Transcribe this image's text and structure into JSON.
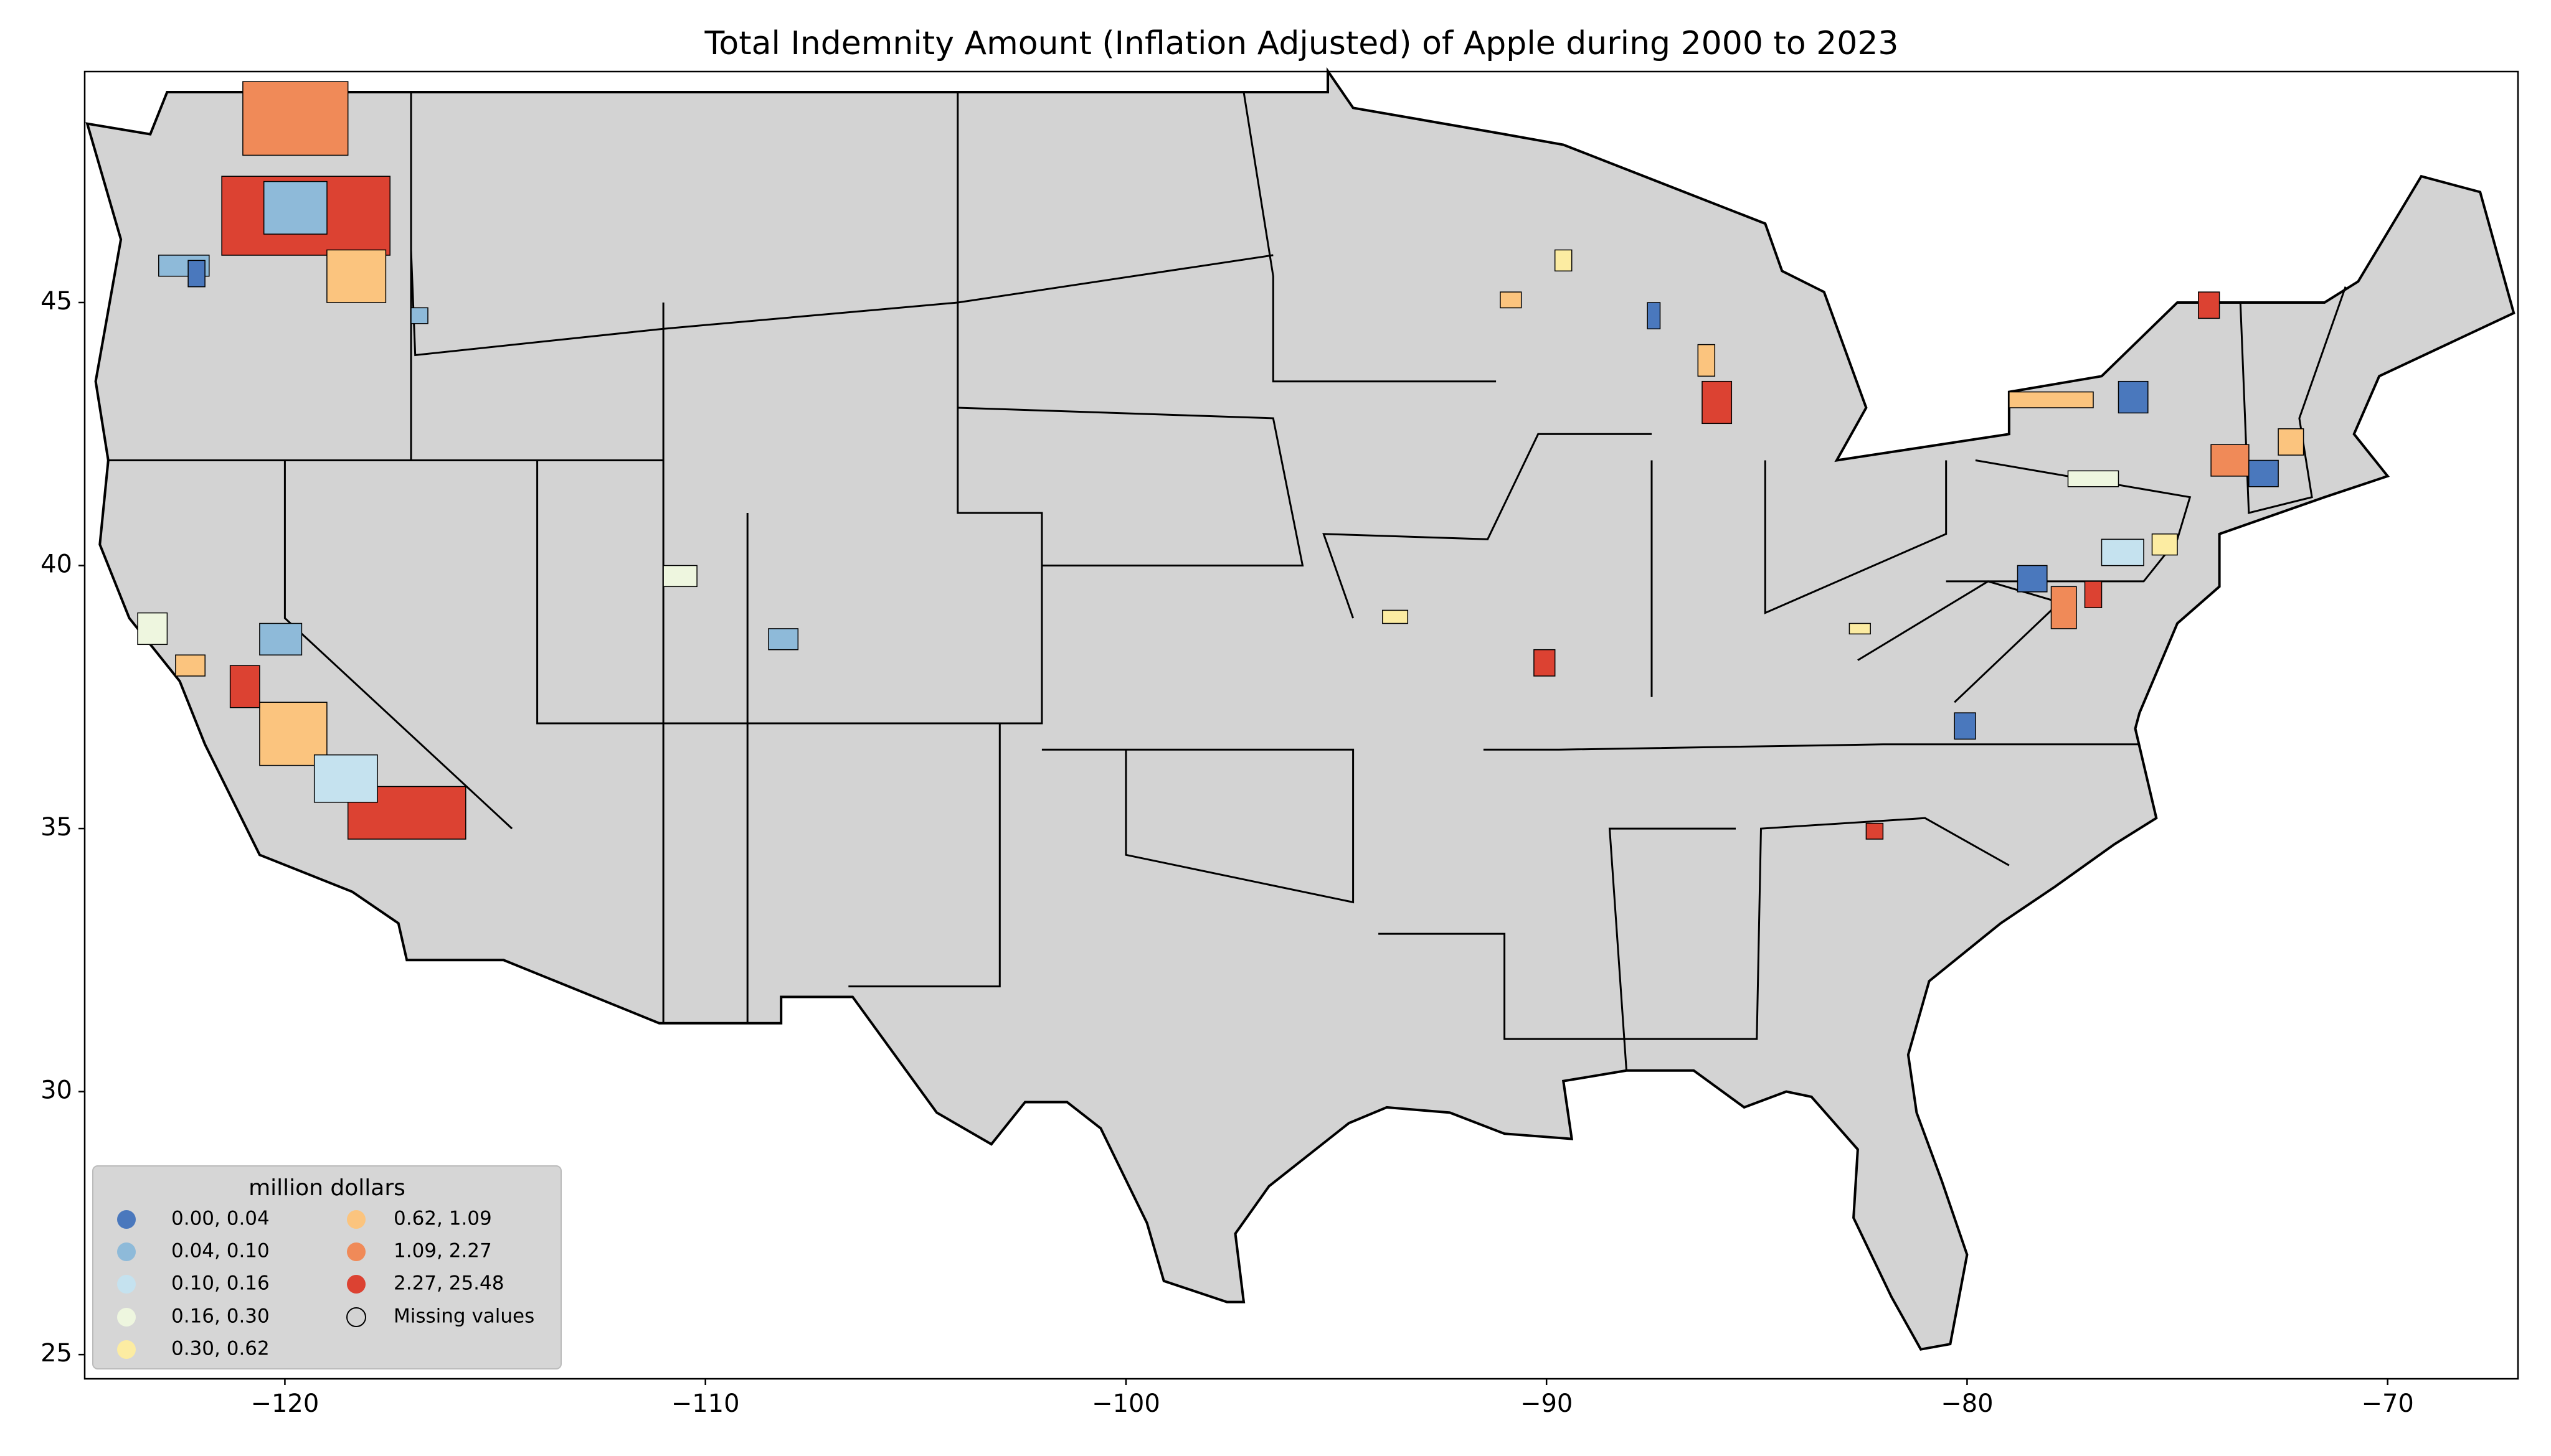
{
  "chart_data": {
    "type": "choropleth",
    "title": "Total Indemnity Amount  (Inflation Adjusted) of Apple during 2000 to 2023",
    "legend_title": "million dollars",
    "classes": [
      {
        "label": "0.00,  0.04",
        "color": "#4a78bd"
      },
      {
        "label": "0.04,  0.10",
        "color": "#8ebad9"
      },
      {
        "label": "0.10,  0.16",
        "color": "#c5e2ef"
      },
      {
        "label": "0.16,  0.30",
        "color": "#eef6df"
      },
      {
        "label": "0.30,  0.62",
        "color": "#fcec a2"
      },
      {
        "label": "0.62,  1.09",
        "color": "#fbc47e"
      },
      {
        "label": "1.09,  2.27",
        "color": "#f08a58"
      },
      {
        "label": "2.27, 25.48",
        "color": "#dc4232"
      }
    ],
    "missing_label": "Missing values",
    "missing_color": "#d3d3d3",
    "xlim": [
      -124.76,
      -66.9
    ],
    "ylim": [
      24.54,
      49.39
    ],
    "xticks": [
      {
        "value": -120,
        "label": "−120"
      },
      {
        "value": -110,
        "label": "−110"
      },
      {
        "value": -100,
        "label": "−100"
      },
      {
        "value": -90,
        "label": "−90"
      },
      {
        "value": -80,
        "label": "−80"
      },
      {
        "value": -70,
        "label": "−70"
      }
    ],
    "yticks": [
      25,
      30,
      35,
      40,
      45
    ]
  }
}
